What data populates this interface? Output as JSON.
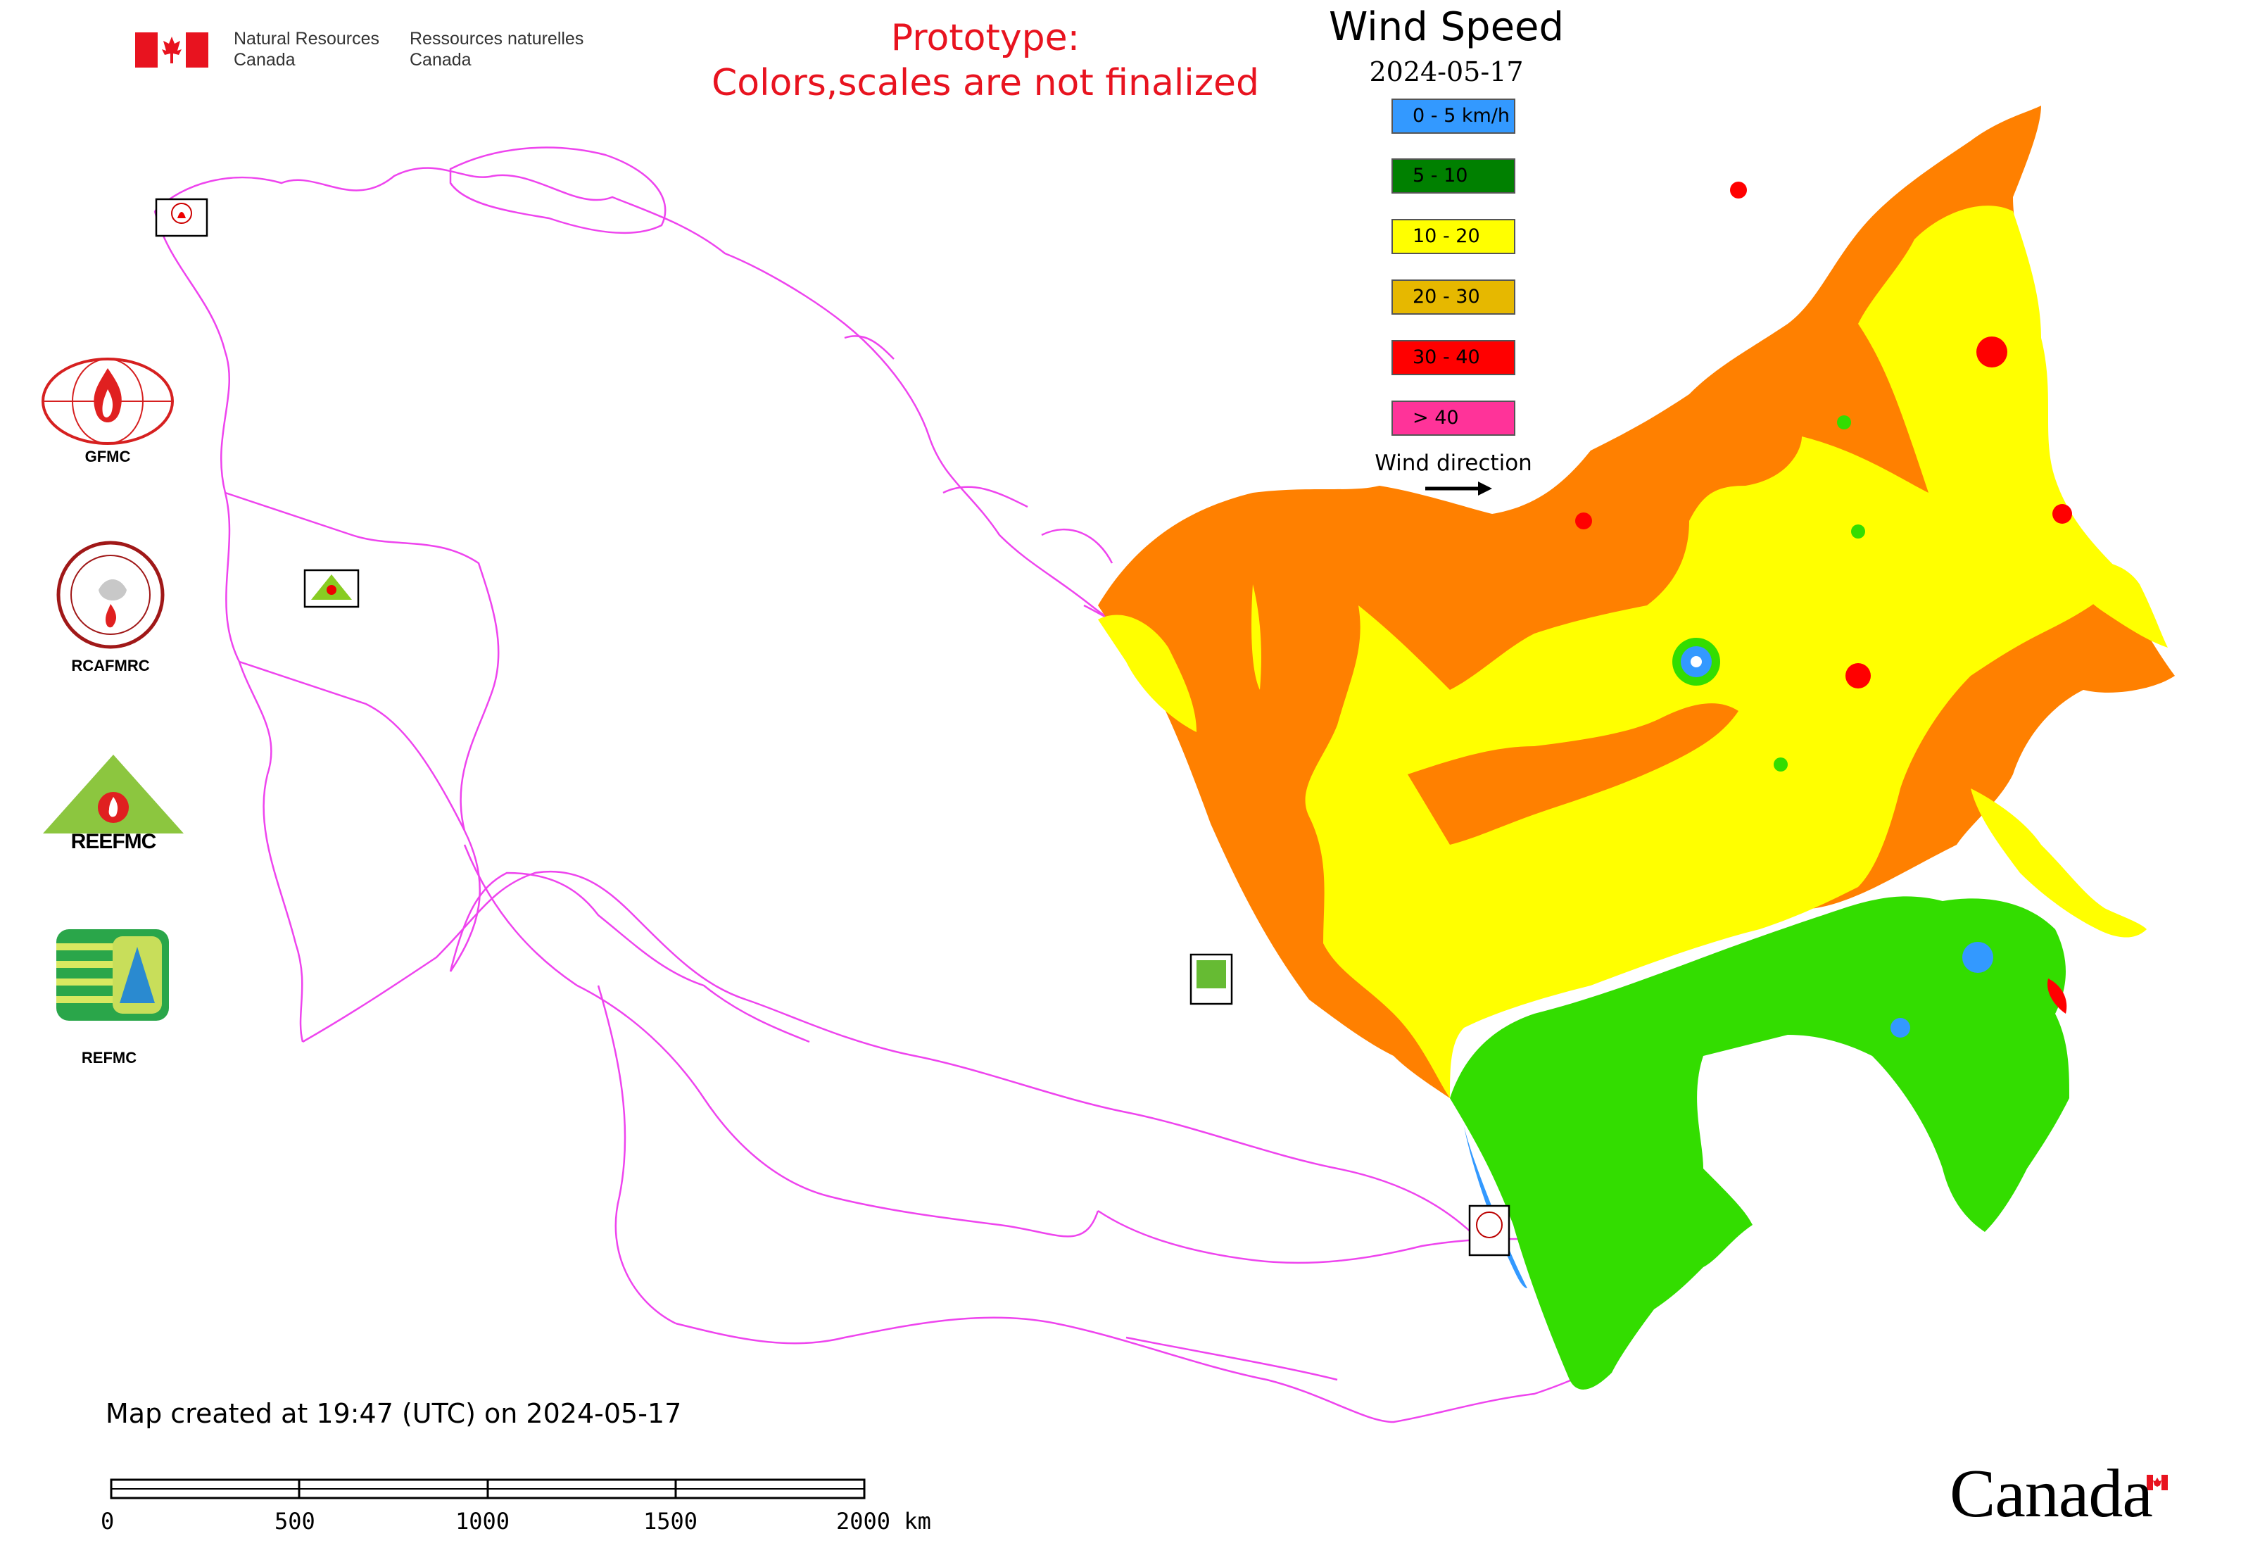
{
  "header": {
    "org_en_line1": "Natural Resources",
    "org_en_line2": "Canada",
    "org_fr_line1": "Ressources naturelles",
    "org_fr_line2": "Canada",
    "prototype_line1": "Prototype:",
    "prototype_line2": "Colors,scales are not finalized"
  },
  "legend": {
    "title": "Wind Speed",
    "date": "2024-05-17",
    "items": [
      {
        "label": "0 - 5 km/h",
        "color": "#3399ff"
      },
      {
        "label": "5 - 10",
        "color": "#008000"
      },
      {
        "label": "10 - 20",
        "color": "#ffff00"
      },
      {
        "label": "20 - 30",
        "color": "#e6b800"
      },
      {
        "label": "30 - 40",
        "color": "#ff0000"
      },
      {
        "label": "> 40",
        "color": "#ff3399"
      }
    ],
    "wind_direction_label": "Wind direction"
  },
  "side_logos": [
    {
      "label": "GFMC",
      "icon": "gfmc-logo"
    },
    {
      "label": "RCAFMRC",
      "icon": "rcafmrc-logo"
    },
    {
      "label": "REEFMC",
      "icon": "reefmc-logo"
    },
    {
      "label": "REFMC",
      "icon": "refmc-logo"
    }
  ],
  "map_markers": [
    {
      "label": "GFMC",
      "icon": "gfmc-marker"
    },
    {
      "label": "REEFMC",
      "icon": "reefmc-marker"
    },
    {
      "label": "REFMC",
      "icon": "refmc-marker"
    },
    {
      "label": "RCAFMRC",
      "icon": "rcafmrc-marker"
    }
  ],
  "footer": {
    "created": "Map created at 19:47 (UTC) on 2024-05-17",
    "wordmark": "Canada"
  },
  "scale_bar": {
    "ticks": [
      "0",
      "500",
      "1000",
      "1500",
      "2000 km"
    ]
  },
  "colors": {
    "orange_zone": "#ff8000",
    "yellow_zone": "#ffff00",
    "light_green_zone": "#33dd00",
    "boundary": "#ee44ee",
    "title_red": "#e8131f"
  }
}
